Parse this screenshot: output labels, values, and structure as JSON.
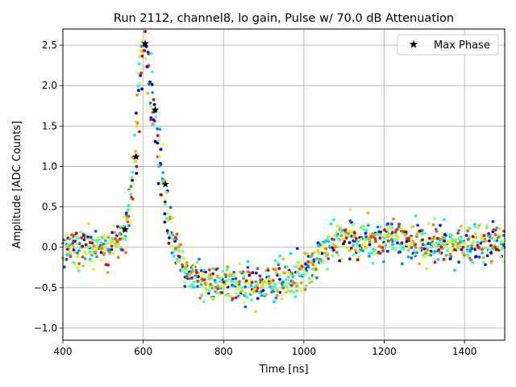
{
  "chart_data": {
    "type": "scatter",
    "title": "Run 2112, channel8, lo gain, Pulse w/ 70.0 dB Attenuation",
    "xlabel": "Time [ns]",
    "ylabel": "Amplitude [ADC Counts]",
    "xlim": [
      400,
      1500
    ],
    "ylim": [
      -1.15,
      2.7
    ],
    "xticks": [
      400,
      600,
      800,
      1000,
      1200,
      1400
    ],
    "xtick_labels": [
      "400",
      "600",
      "800",
      "1000",
      "1200",
      "1400"
    ],
    "yticks": [
      -1.0,
      -0.5,
      0.0,
      0.5,
      1.0,
      1.5,
      2.0,
      2.5
    ],
    "ytick_labels": [
      "−1.0",
      "−0.5",
      "0.0",
      "0.5",
      "1.0",
      "1.5",
      "2.0",
      "2.5"
    ],
    "grid": true,
    "legend": {
      "placement": "top-right",
      "entries": [
        {
          "label": "Max Phase",
          "marker": "star",
          "color": "#000000"
        }
      ]
    },
    "colormap": "jet",
    "pulse_template": {
      "x": [
        400,
        450,
        500,
        540,
        560,
        575,
        585,
        592,
        600,
        606,
        612,
        620,
        630,
        640,
        650,
        660,
        670,
        680,
        690,
        700,
        710,
        730,
        760,
        800,
        850,
        900,
        950,
        980,
        1000,
        1030,
        1060,
        1100,
        1150,
        1200,
        1300,
        1400,
        1500
      ],
      "y": [
        0.0,
        0.02,
        0.0,
        0.05,
        0.25,
        0.8,
        1.5,
        2.1,
        2.45,
        2.5,
        2.3,
        1.9,
        1.6,
        1.2,
        0.8,
        0.45,
        0.2,
        0.05,
        -0.05,
        -0.15,
        -0.3,
        -0.38,
        -0.42,
        -0.45,
        -0.45,
        -0.45,
        -0.42,
        -0.38,
        -0.3,
        -0.15,
        0.05,
        0.12,
        0.1,
        0.08,
        0.05,
        0.05,
        0.05
      ]
    },
    "samples_per_trace": 180,
    "trace_count": 7,
    "noise_sd": 0.12,
    "series": [
      {
        "name": "Max Phase",
        "marker": "star",
        "x": [
          555,
          582,
          605,
          630,
          655
        ],
        "y": [
          0.22,
          1.12,
          2.52,
          1.7,
          0.78
        ]
      }
    ]
  }
}
